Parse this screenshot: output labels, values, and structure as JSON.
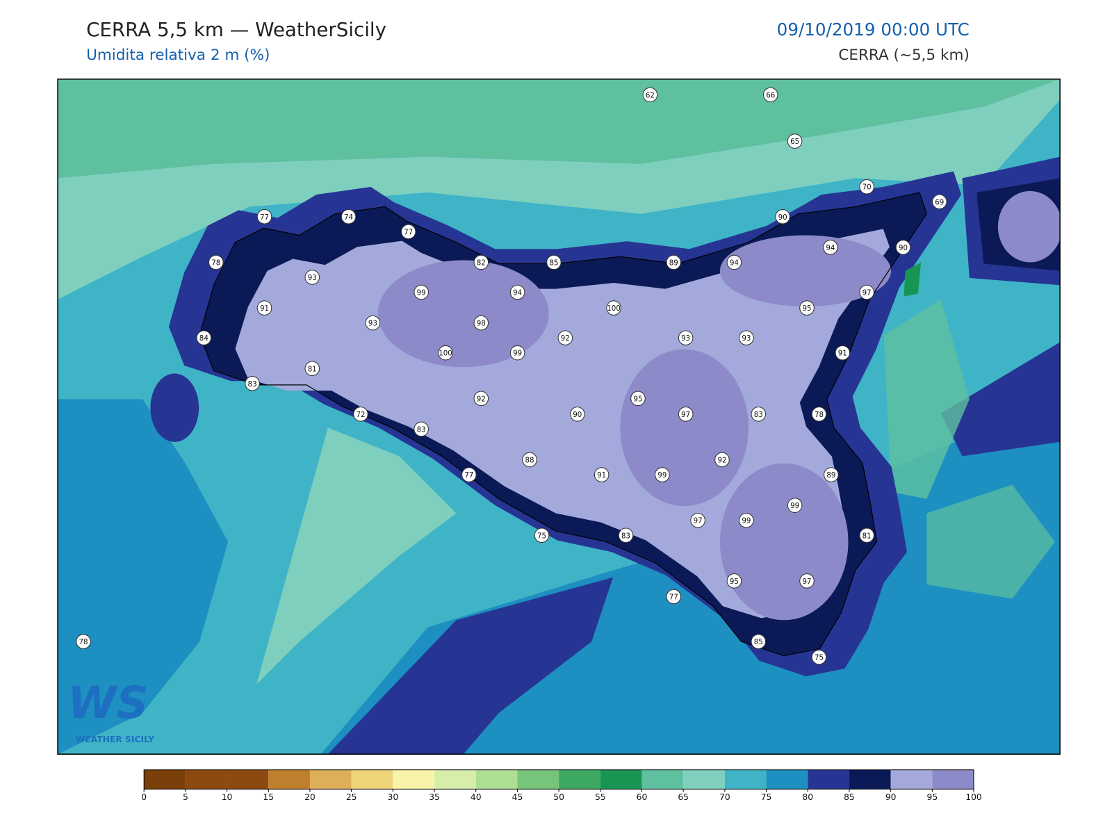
{
  "header": {
    "title": "CERRA 5,5 km — WeatherSicily",
    "subtitle": "Umidita relativa 2 m (%)",
    "datetime": "09/10/2019 00:00 UTC",
    "model": "CERRA (~5,5 km)"
  },
  "stations": [
    62,
    66,
    65,
    70,
    69,
    77,
    74,
    77,
    90,
    94,
    90,
    78,
    93,
    82,
    85,
    89,
    94,
    99,
    94,
    97,
    91,
    100,
    95,
    93,
    98,
    92,
    93,
    93,
    84,
    100,
    99,
    91,
    81,
    83,
    92,
    95,
    72,
    90,
    97,
    83,
    78,
    83,
    88,
    92,
    77,
    91,
    99,
    89,
    99,
    97,
    99,
    75,
    83,
    81,
    95,
    97,
    77,
    85,
    75,
    78
  ],
  "colorbar": {
    "colors": [
      "#7b3f0a",
      "#8c4a10",
      "#8c4a10",
      "#c07f2d",
      "#deaf59",
      "#f0d47a",
      "#f7f4a9",
      "#d7eeaa",
      "#addf92",
      "#76c57a",
      "#3da85f",
      "#189552",
      "#5fc0a0",
      "#7fcfbe",
      "#3fb4c6",
      "#1d8fc1",
      "#263594",
      "#0b1a57",
      "#a3aadb",
      "#8c8ac8"
    ],
    "ticks": [
      0,
      5,
      10,
      15,
      20,
      25,
      30,
      35,
      40,
      45,
      50,
      55,
      60,
      65,
      70,
      75,
      80,
      85,
      90,
      95,
      100
    ]
  },
  "logo": {
    "mark": "WS",
    "text": "WEATHER SICILY"
  }
}
